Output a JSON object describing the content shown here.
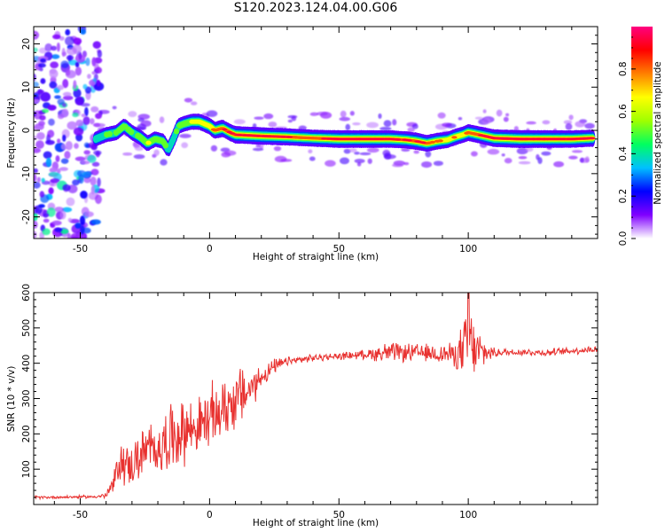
{
  "title": "S120.2023.124.04.00.G06",
  "chart_data": [
    {
      "type": "heatmap",
      "xlabel": "Height of straight line (km)",
      "ylabel": "Frequency (Hz)",
      "xlim": [
        -68,
        150
      ],
      "ylim": [
        -25,
        24
      ],
      "xticks": [
        -50,
        0,
        50,
        100
      ],
      "yticks": [
        -20,
        -10,
        0,
        10,
        20
      ],
      "colorbar": {
        "label": "Normalized spectral amplitude",
        "range": [
          0,
          1
        ],
        "ticks": [
          "0.0",
          "0.2",
          "0.4",
          "0.6",
          "0.8"
        ],
        "colormap": [
          "#ffffff",
          "#8000ff",
          "#0000ff",
          "#00c0ff",
          "#00ff60",
          "#a0ff00",
          "#ffff00",
          "#ff8000",
          "#ff0000",
          "#ff0080"
        ]
      },
      "ridge": {
        "x": [
          -44,
          -40,
          -36,
          -33,
          -30,
          -27,
          -24,
          -21,
          -18,
          -16,
          -14,
          -12,
          -10,
          -7,
          -4,
          -2,
          0,
          2,
          5,
          8,
          10,
          20,
          30,
          40,
          50,
          60,
          70,
          76,
          80,
          84,
          88,
          92,
          95,
          98,
          100,
          104,
          110,
          120,
          130,
          140,
          148
        ],
        "y": [
          -2,
          -1,
          -0.5,
          1,
          -0.5,
          -1.5,
          -3,
          -2,
          -2.5,
          -4.5,
          -2,
          1,
          1.5,
          2,
          2,
          1.5,
          1,
          0,
          0.5,
          -0.5,
          -1,
          -1.3,
          -1.5,
          -1.8,
          -2,
          -2,
          -2,
          -2.2,
          -2.5,
          -3,
          -2.5,
          -2.2,
          -1.5,
          -1,
          -0.5,
          -1,
          -1.8,
          -2,
          -2,
          -2,
          -1.8
        ]
      },
      "ridge_strength": [
        0.35,
        0.4,
        0.45,
        0.5,
        0.45,
        0.5,
        0.55,
        0.5,
        0.45,
        0.4,
        0.45,
        0.5,
        0.55,
        0.6,
        0.65,
        0.7,
        0.75,
        0.8,
        0.85,
        0.85,
        0.9,
        0.9,
        0.85,
        0.8,
        0.95,
        0.95,
        0.9,
        0.85,
        0.9,
        0.8,
        0.75,
        0.7,
        0.7,
        0.7,
        0.8,
        0.85,
        0.95,
        1.0,
        0.95,
        0.9,
        0.85
      ]
    },
    {
      "type": "line",
      "xlabel": "Height of straight line (km)",
      "ylabel": "SNR (10 * v/v)",
      "xlim": [
        -68,
        150
      ],
      "ylim": [
        0,
        600
      ],
      "xticks": [
        -50,
        0,
        50,
        100
      ],
      "yticks": [
        100,
        200,
        300,
        400,
        500,
        600
      ],
      "color": "#e8312f",
      "envelope": {
        "x": [
          -68,
          -45,
          -40,
          -37,
          -35,
          -30,
          -25,
          -20,
          -15,
          -10,
          -5,
          0,
          5,
          10,
          15,
          20,
          25,
          30,
          40,
          50,
          60,
          68,
          75,
          85,
          95,
          98,
          100,
          102,
          105,
          110,
          120,
          130,
          140,
          150
        ],
        "mean": [
          20,
          22,
          25,
          60,
          120,
          110,
          150,
          160,
          190,
          210,
          220,
          240,
          270,
          300,
          320,
          360,
          390,
          405,
          415,
          420,
          425,
          430,
          430,
          428,
          425,
          430,
          460,
          440,
          430,
          430,
          432,
          430,
          435,
          440
        ],
        "spread": [
          5,
          5,
          10,
          40,
          70,
          70,
          90,
          90,
          110,
          110,
          90,
          110,
          100,
          110,
          80,
          40,
          25,
          15,
          12,
          12,
          15,
          35,
          30,
          30,
          40,
          100,
          140,
          100,
          60,
          15,
          12,
          12,
          12,
          12
        ]
      }
    }
  ]
}
